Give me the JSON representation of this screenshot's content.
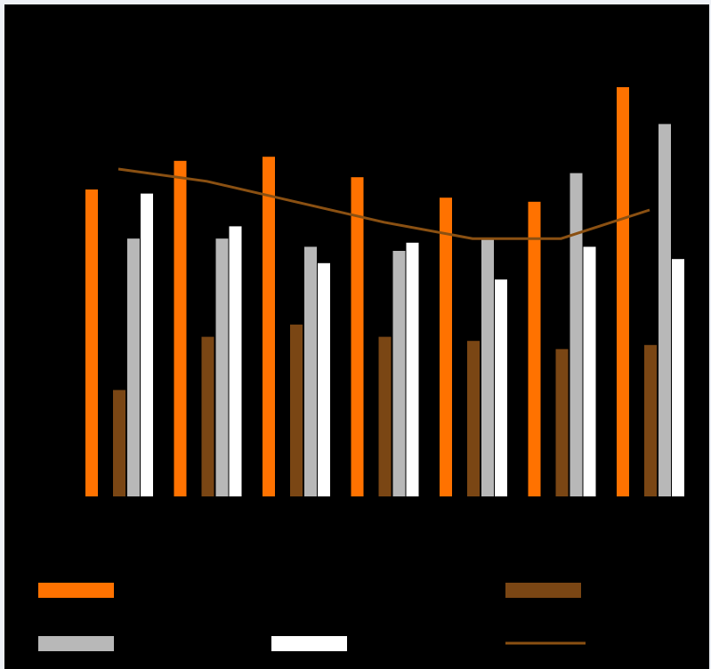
{
  "chart_data": {
    "type": "bar",
    "ylim": [
      0,
      100
    ],
    "series": [
      {
        "color": "#ff7200",
        "values": [
          75,
          82,
          83,
          78,
          73,
          72,
          100
        ]
      },
      {
        "color": "#7a4614",
        "values": [
          26,
          39,
          42,
          39,
          38,
          36,
          37
        ]
      },
      {
        "color": "#b8b8b8",
        "values": [
          63,
          63,
          61,
          60,
          63,
          79,
          91
        ]
      },
      {
        "color": "#ffffff",
        "values": [
          74,
          66,
          57,
          62,
          53,
          61,
          58
        ]
      },
      {
        "color": "#8a5012",
        "type": "line",
        "values": [
          80,
          77,
          72,
          67,
          63,
          63,
          70
        ]
      }
    ]
  }
}
